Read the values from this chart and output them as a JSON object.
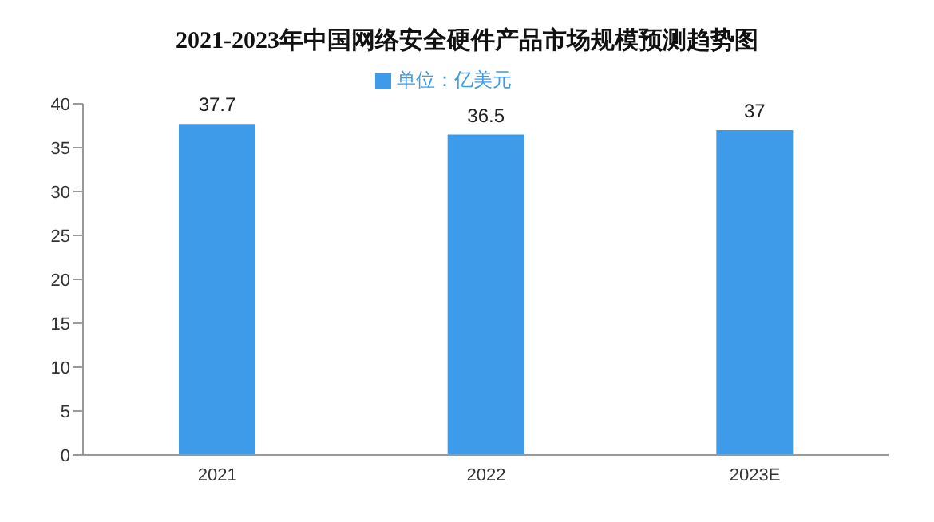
{
  "chart_data": {
    "type": "bar",
    "title": "2021-2023年中国网络安全硬件产品市场规模预测趋势图",
    "categories": [
      "2021",
      "2022",
      "2023E"
    ],
    "series": [
      {
        "name": "单位：亿美元",
        "color": "#3d9be9",
        "values": [
          37.7,
          36.5,
          37
        ]
      }
    ],
    "ylim": [
      0,
      40
    ],
    "yticks": [
      0,
      5,
      10,
      15,
      20,
      25,
      30,
      35,
      40
    ],
    "data_labels": true,
    "legend": "top",
    "grid": false
  }
}
